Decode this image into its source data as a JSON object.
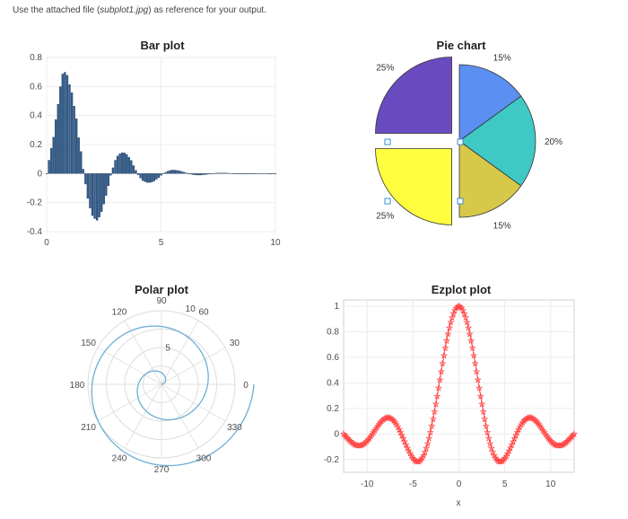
{
  "instruction": {
    "prefix": "Use the attached file (",
    "file": "subplot1.jpg",
    "suffix": ") as reference for your output."
  },
  "chart_data": [
    {
      "type": "bar",
      "title": "Bar plot",
      "xlim": [
        0,
        10
      ],
      "ylim": [
        -0.4,
        0.8
      ],
      "xticks": [
        "0",
        "5",
        "10"
      ],
      "yticks": [
        "0.8",
        "0.6",
        "0.4",
        "0.2",
        "0",
        "-0.2",
        "-0.4"
      ],
      "x": [
        0.0,
        0.1,
        0.2,
        0.3,
        0.4,
        0.5,
        0.6,
        0.7,
        0.8,
        0.9,
        1.0,
        1.1,
        1.2,
        1.3,
        1.4,
        1.5,
        1.6,
        1.7,
        1.8,
        1.9,
        2.0,
        2.1,
        2.2,
        2.3,
        2.4,
        2.5,
        2.6,
        2.7,
        2.8,
        2.9,
        3.0,
        3.1,
        3.2,
        3.3,
        3.4,
        3.5,
        3.6,
        3.7,
        3.8,
        3.9,
        4.0,
        4.1,
        4.2,
        4.3,
        4.4,
        4.5,
        4.6,
        4.7,
        4.8,
        4.9,
        5.0,
        5.1,
        5.2,
        5.3,
        5.4,
        5.5,
        5.6,
        5.7,
        5.8,
        5.9,
        6.0,
        6.1,
        6.2,
        6.3,
        6.4,
        6.5,
        6.6,
        6.7,
        6.8,
        6.9,
        7.0,
        7.1,
        7.2,
        7.3,
        7.4,
        7.5,
        7.6,
        7.7,
        7.8,
        7.9,
        8.0,
        8.1,
        8.2,
        8.3,
        8.4,
        8.5,
        8.6,
        8.7,
        8.8,
        8.9,
        9.0,
        9.1,
        9.2,
        9.3,
        9.4,
        9.5,
        9.6,
        9.7,
        9.8,
        9.9,
        10.0
      ],
      "values": [
        0.0,
        0.092,
        0.175,
        0.251,
        0.372,
        0.478,
        0.599,
        0.686,
        0.698,
        0.677,
        0.613,
        0.558,
        0.465,
        0.378,
        0.247,
        0.152,
        0.03,
        -0.072,
        -0.171,
        -0.238,
        -0.289,
        -0.31,
        -0.322,
        -0.3,
        -0.262,
        -0.21,
        -0.151,
        -0.084,
        -0.012,
        0.04,
        0.092,
        0.121,
        0.137,
        0.144,
        0.143,
        0.132,
        0.112,
        0.091,
        0.055,
        0.022,
        -0.008,
        -0.031,
        -0.048,
        -0.056,
        -0.061,
        -0.062,
        -0.058,
        -0.051,
        -0.039,
        -0.028,
        -0.012,
        -0.002,
        0.009,
        0.017,
        0.022,
        0.024,
        0.024,
        0.022,
        0.019,
        0.015,
        0.01,
        0.005,
        0.0,
        -0.004,
        -0.007,
        -0.009,
        -0.01,
        -0.01,
        -0.009,
        -0.007,
        -0.005,
        -0.003,
        0.0,
        0.001,
        0.003,
        0.004,
        0.004,
        0.004,
        0.004,
        0.003,
        0.002,
        0.001,
        0.0,
        -0.001,
        -0.001,
        -0.002,
        -0.002,
        -0.002,
        -0.001,
        -0.001,
        0.0,
        0.0,
        0.001,
        0.001,
        0.001,
        0.001,
        0.001,
        0.0,
        0.0,
        0.0,
        0.0
      ],
      "bar_color": "#2f5d8f"
    },
    {
      "type": "pie",
      "title": "Pie chart",
      "slices": [
        {
          "value": 25,
          "label": "25%",
          "color": "#6a4bbf",
          "explode": true
        },
        {
          "value": 25,
          "label": "25%",
          "color": "#ffff40",
          "explode": true
        },
        {
          "value": 15,
          "label": "15%",
          "color": "#d6c94a",
          "explode": false
        },
        {
          "value": 20,
          "label": "20%",
          "color": "#3ec9c4",
          "explode": false
        },
        {
          "value": 15,
          "label": "15%",
          "color": "#5c8ff2",
          "explode": false
        }
      ]
    },
    {
      "type": "polar",
      "title": "Polar plot",
      "series": "Archimedean spiral, r = theta, theta from 0 to 4 pi",
      "theta_end": 12.566,
      "rlim": [
        0,
        10
      ],
      "rticks": [
        "5",
        "10"
      ],
      "angle_ticks": [
        "0",
        "30",
        "60",
        "90",
        "120",
        "150",
        "180",
        "210",
        "240",
        "270",
        "300",
        "330"
      ],
      "line_color": "#6aaed6"
    },
    {
      "type": "line",
      "title": "Ezplot plot",
      "function": "sin(x)/x",
      "xlabel": "x",
      "xlim": [
        -12.57,
        12.57
      ],
      "ylim": [
        -0.3,
        1.05
      ],
      "xticks": [
        "-10",
        "-5",
        "0",
        "5",
        "10"
      ],
      "yticks": [
        "1",
        "0.8",
        "0.6",
        "0.4",
        "0.2",
        "0",
        "-0.2"
      ],
      "marker": "star",
      "line_color": "#ff4040"
    }
  ]
}
